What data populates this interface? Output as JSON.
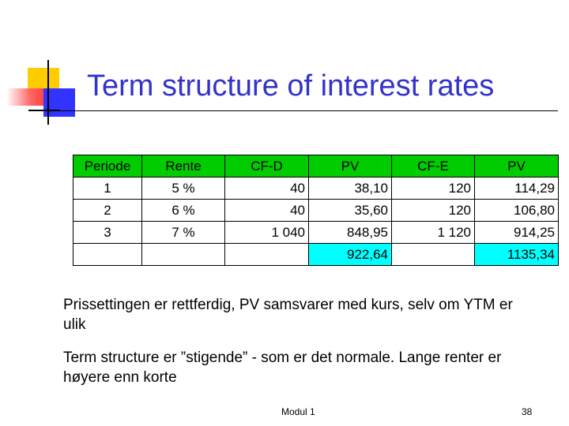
{
  "slide": {
    "title": "Term structure of interest rates",
    "paragraph_1": "Prissettingen er rettferdig, PV samsvarer med kurs, selv om YTM er ulik",
    "paragraph_2": "Term structure er ”stigende” - som er det normale. Lange renter er høyere enn korte",
    "footer_center": "Modul 1",
    "page_number": "38"
  },
  "table": {
    "headers": [
      "Periode",
      "Rente",
      "CF-D",
      "PV",
      "CF-E",
      "PV"
    ],
    "rows": [
      [
        "1",
        "5 %",
        "40",
        "38,10",
        "120",
        "114,29"
      ],
      [
        "2",
        "6 %",
        "40",
        "35,60",
        "120",
        "106,80"
      ],
      [
        "3",
        "7 %",
        "1 040",
        "848,95",
        "1 120",
        "914,25"
      ],
      [
        "",
        "",
        "",
        "922,64",
        "",
        "1135,34"
      ]
    ]
  },
  "colors": {
    "title": "#3333cc",
    "header_fill": "#00cc00",
    "total_fill": "#00ffff",
    "deco_yellow": "#ffcc00",
    "deco_blue": "#3333ff",
    "deco_red": "#ff3333"
  }
}
